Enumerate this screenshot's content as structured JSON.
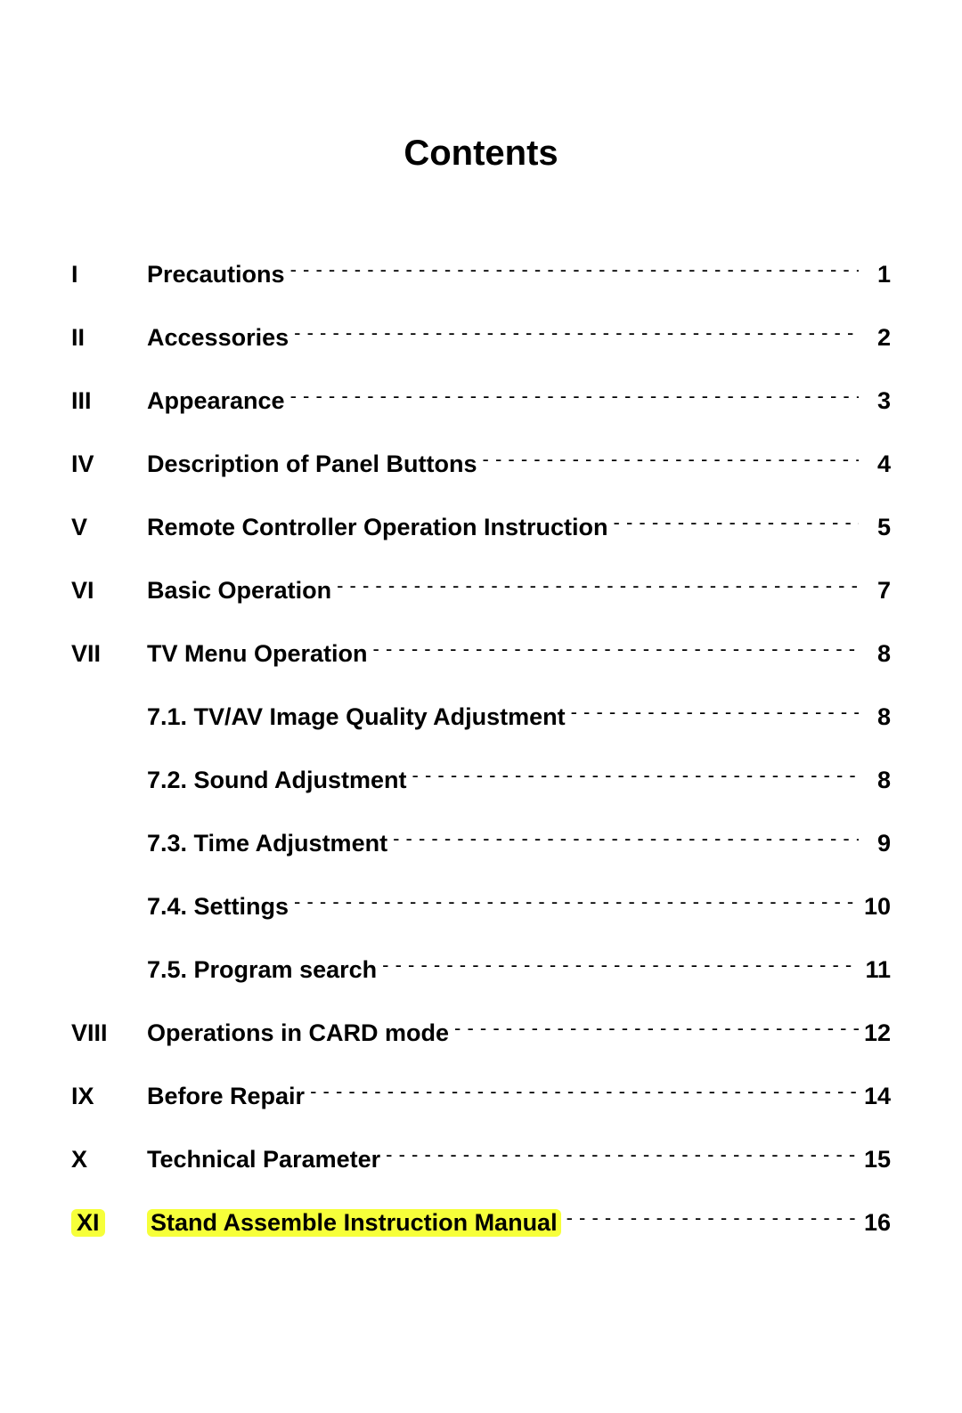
{
  "title": "Contents",
  "title_fontsize": 40,
  "body_fontsize": 27,
  "background_color": "#ffffff",
  "text_color": "#000000",
  "highlight_color": "#f6ff3a",
  "entries": [
    {
      "roman": "I",
      "label": "Precautions",
      "page": "1",
      "level": 0,
      "highlight": false
    },
    {
      "roman": "II",
      "label": "Accessories",
      "page": "2",
      "level": 0,
      "highlight": false
    },
    {
      "roman": "III",
      "label": "Appearance",
      "page": "3",
      "level": 0,
      "highlight": false
    },
    {
      "roman": "IV",
      "label": "Description of Panel Buttons",
      "page": "4",
      "level": 0,
      "highlight": false
    },
    {
      "roman": "V",
      "label": "Remote Controller Operation Instruction",
      "page": "5",
      "level": 0,
      "highlight": false
    },
    {
      "roman": "VI",
      "label": "Basic Operation",
      "page": "7",
      "level": 0,
      "highlight": false
    },
    {
      "roman": "VII",
      "label": "TV Menu Operation",
      "page": "8",
      "level": 0,
      "highlight": false
    },
    {
      "roman": "",
      "label": "7.1. TV/AV Image Quality Adjustment",
      "page": "8",
      "level": 1,
      "highlight": false
    },
    {
      "roman": "",
      "label": "7.2. Sound Adjustment",
      "page": "8",
      "level": 1,
      "highlight": false
    },
    {
      "roman": "",
      "label": "7.3. Time Adjustment",
      "page": "9",
      "level": 1,
      "highlight": false
    },
    {
      "roman": "",
      "label": "7.4. Settings",
      "page": "10",
      "level": 1,
      "highlight": false
    },
    {
      "roman": "",
      "label": "7.5. Program search",
      "page": "11",
      "level": 1,
      "highlight": false
    },
    {
      "roman": "VIII",
      "label": "Operations in CARD mode",
      "page": "12",
      "level": 0,
      "highlight": false
    },
    {
      "roman": "IX",
      "label": "Before Repair",
      "page": "14",
      "level": 0,
      "highlight": false
    },
    {
      "roman": "X",
      "label": "Technical Parameter",
      "page": "15",
      "level": 0,
      "highlight": false
    },
    {
      "roman": "XI",
      "label": "Stand Assemble Instruction Manual",
      "page": "16",
      "level": 0,
      "highlight": true
    }
  ]
}
